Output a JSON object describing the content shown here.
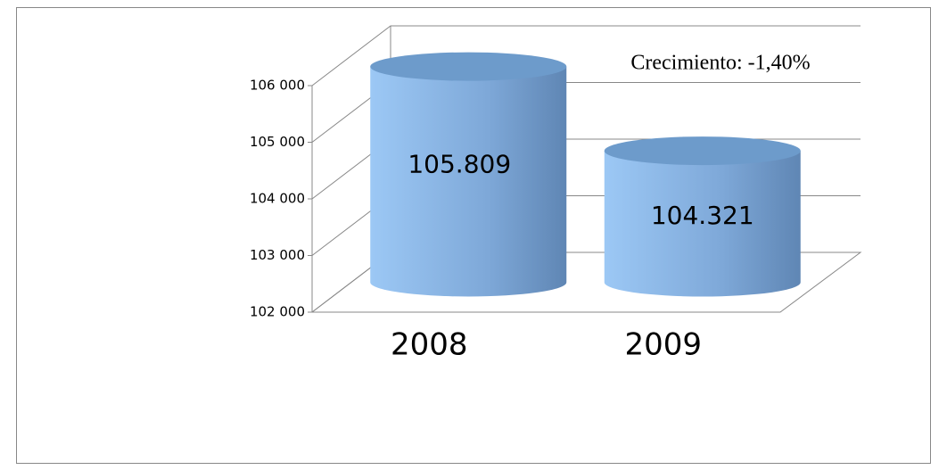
{
  "chart_data": {
    "type": "cylinder",
    "annotation": "Crecimiento: -1,40%",
    "categories": [
      "2008",
      "2009"
    ],
    "values": [
      105809,
      104321
    ],
    "value_labels": [
      "105.809",
      "104.321"
    ],
    "color": "#8fb8e8",
    "ylim": [
      102000,
      106000
    ],
    "yticks": [
      {
        "value": 102000,
        "label": "102 000"
      },
      {
        "value": 103000,
        "label": "103 000"
      },
      {
        "value": 104000,
        "label": "104 000"
      },
      {
        "value": 105000,
        "label": "105 000"
      },
      {
        "value": 106000,
        "label": "106 000"
      }
    ],
    "grid": true
  }
}
